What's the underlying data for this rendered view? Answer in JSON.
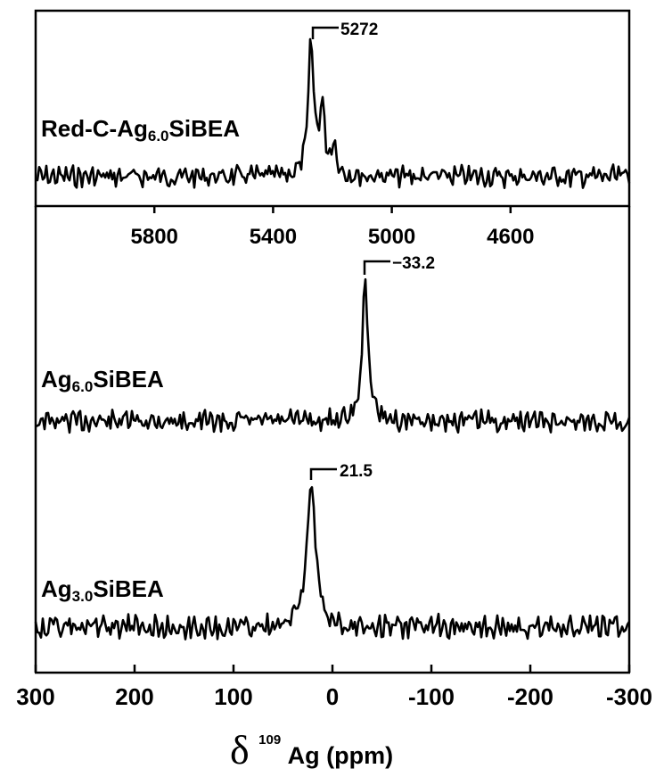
{
  "chart_data": [
    {
      "type": "line",
      "panel": "top",
      "x_unit": "ppm",
      "xlim": [
        6200,
        4200
      ],
      "x_ticks": [
        "5800",
        "5400",
        "5000",
        "4600"
      ],
      "x_tick_values": [
        5800,
        5400,
        5000,
        4600
      ],
      "series": [
        {
          "name": "Red-C-Ag6.0SiBEA",
          "peak_position": 5272,
          "peak_label": "5272",
          "peaks": [
            {
              "x": 5272,
              "height": 1.0,
              "width": 14
            },
            {
              "x": 5235,
              "height": 0.5,
              "width": 14
            },
            {
              "x": 5195,
              "height": 0.25,
              "width": 12
            }
          ]
        }
      ],
      "legend": {
        "prefix": "Red-C-Ag",
        "sub": "6.0",
        "suffix": "SiBEA"
      }
    },
    {
      "type": "line",
      "panel": "bottom",
      "xlabel": {
        "delta": "δ",
        "sup": "109",
        "text": "Ag  (ppm)"
      },
      "xlim": [
        300,
        -300
      ],
      "x_ticks": [
        "300",
        "200",
        "100",
        "0",
        "-100",
        "-200",
        "-300"
      ],
      "x_tick_values": [
        300,
        200,
        100,
        0,
        -100,
        -200,
        -300
      ],
      "series": [
        {
          "name": "Ag6.0SiBEA",
          "peak_position": -33.2,
          "peak_label": "−33.2",
          "peaks": [
            {
              "x": -33.2,
              "height": 1.0,
              "width": 4.5
            }
          ],
          "legend": {
            "prefix": "Ag",
            "sub": "6.0",
            "suffix": "SiBEA"
          }
        },
        {
          "name": "Ag3.0SiBEA",
          "peak_position": 21.5,
          "peak_label": "21.5",
          "peaks": [
            {
              "x": 21.5,
              "height": 1.0,
              "width": 7
            }
          ],
          "legend": {
            "prefix": "Ag",
            "sub": "3.0",
            "suffix": "SiBEA"
          }
        }
      ]
    }
  ]
}
